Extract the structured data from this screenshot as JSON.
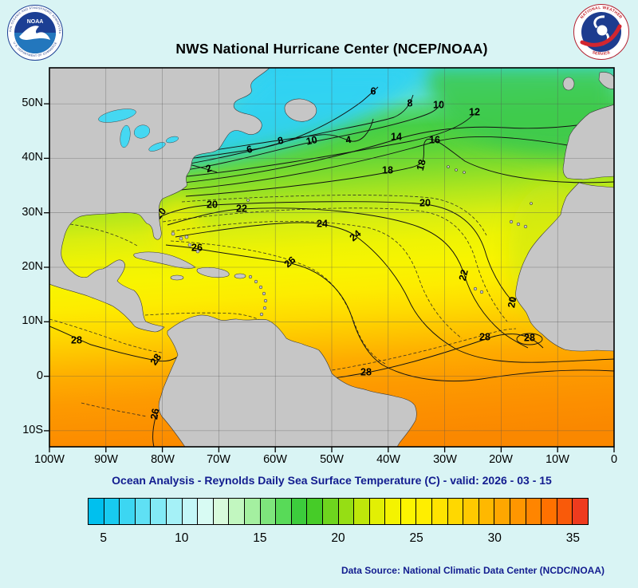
{
  "header": {
    "title": "NWS National Hurricane Center (NCEP/NOAA)",
    "noaa_logo": {
      "label": "NOAA",
      "ring_top": "NATIONAL OCEANIC AND ATMOSPHERIC ADMINISTRATION",
      "ring_bottom": "U.S. DEPARTMENT OF COMMERCE"
    },
    "nws_logo": {
      "ring_top": "NATIONAL WEATHER",
      "ring_bottom": "SERVICE"
    }
  },
  "map": {
    "lat_labels": [
      "50N",
      "40N",
      "30N",
      "20N",
      "10N",
      "0",
      "10S"
    ],
    "lon_labels": [
      "100W",
      "90W",
      "80W",
      "70W",
      "60W",
      "50W",
      "40W",
      "30W",
      "20W",
      "10W",
      "0"
    ],
    "contour_labels": [
      "6",
      "8",
      "10",
      "12",
      "2",
      "6",
      "8",
      "10",
      "4",
      "14",
      "16",
      "18",
      "18",
      "20",
      "20",
      "20",
      "22",
      "24",
      "24",
      "26",
      "26",
      "22",
      "20",
      "28",
      "28",
      "28",
      "28",
      "28",
      "26"
    ],
    "land_color": "#c6c6c6"
  },
  "subtitle": "Ocean Analysis - Reynolds Daily Sea Surface Temperature (C) - valid: 2026 - 03 - 15",
  "colorbar": {
    "colors": [
      "#00c0ee",
      "#18cbf0",
      "#3cd6f2",
      "#5fe0f4",
      "#82eaf6",
      "#a5f1f7",
      "#c3f7f8",
      "#d8fbf3",
      "#d8fbdc",
      "#c2f7c0",
      "#a4f0a0",
      "#7ee57c",
      "#58da58",
      "#3ccc3c",
      "#46cc28",
      "#6ed51e",
      "#96de14",
      "#bee70a",
      "#e2ef04",
      "#f4f300",
      "#fcf500",
      "#ffee00",
      "#ffe300",
      "#ffd800",
      "#ffc900",
      "#ffb800",
      "#ffa700",
      "#ff9600",
      "#ff8500",
      "#ff7100",
      "#f95a0a",
      "#ef3b1e"
    ],
    "ticks": [
      "5",
      "10",
      "15",
      "20",
      "25",
      "30",
      "35"
    ]
  },
  "footer": {
    "data_source": "Data Source: National Climatic Data Center (NCDC/NOAA)"
  }
}
